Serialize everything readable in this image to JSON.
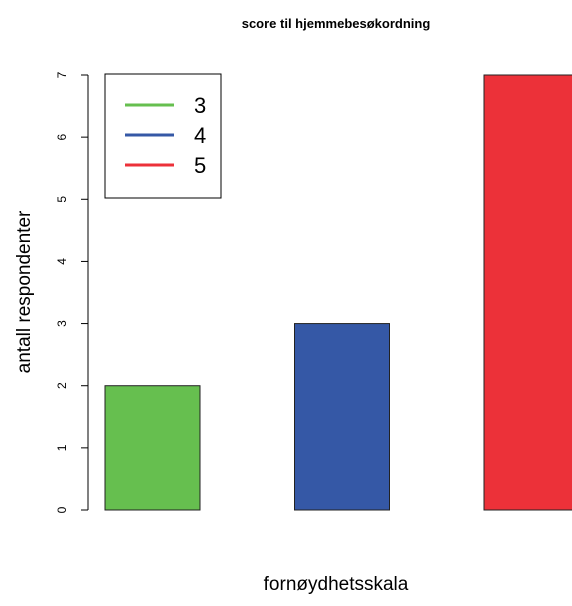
{
  "chart_data": {
    "type": "bar",
    "title": "score til hjemmebesøkordning",
    "xlabel": "fornøydhetsskala",
    "ylabel": "antall respondenter",
    "categories": [
      "3",
      "4",
      "5"
    ],
    "values": [
      2,
      3,
      7
    ],
    "colors": [
      "#66bf4f",
      "#3558a6",
      "#ec3139"
    ],
    "ylim": [
      0,
      7
    ],
    "yticks": [
      0,
      1,
      2,
      3,
      4,
      5,
      6,
      7
    ],
    "grid": false,
    "legend": {
      "position": "top-left",
      "entries": [
        {
          "label": "3",
          "color": "#66bf4f"
        },
        {
          "label": "4",
          "color": "#3558a6"
        },
        {
          "label": "5",
          "color": "#ec3139"
        }
      ]
    }
  }
}
